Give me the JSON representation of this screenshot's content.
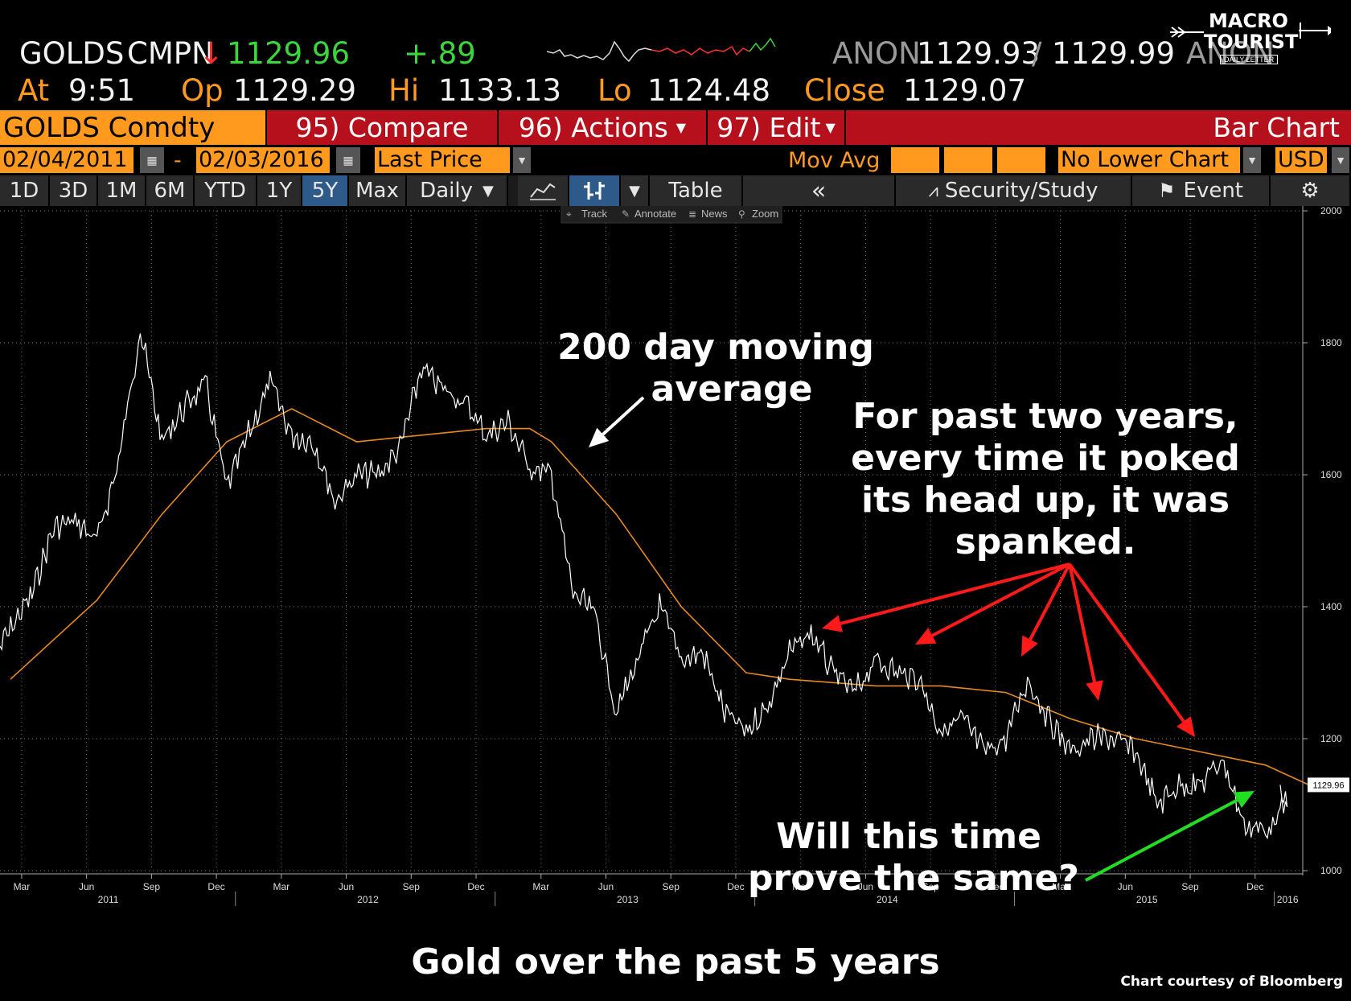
{
  "logo": {
    "line1": "MACRO",
    "line2": "TOURIST",
    "tag": "DAILY LETTER"
  },
  "quote": {
    "ticker": "GOLDS",
    "source": "CMPN",
    "arrow": "↓",
    "last": "1129.96",
    "change": "+.89",
    "bidask_source": "ANON",
    "bid": "1129.93",
    "slash": "/",
    "ask": "1129.99",
    "ask_source": "ANON",
    "at_label": "At",
    "at_time": "9:51",
    "op_label": "Op",
    "op": "1129.29",
    "hi_label": "Hi",
    "hi": "1133.13",
    "lo_label": "Lo",
    "lo": "1124.48",
    "close_label": "Close",
    "close": "1129.07"
  },
  "toolbar": {
    "security": "GOLDS Comdty",
    "compare": "95) Compare",
    "actions": "96) Actions",
    "edit": "97) Edit",
    "bar_chart": "Bar Chart",
    "start_date": "02/04/2011",
    "dash": "-",
    "end_date": "02/03/2016",
    "field": "Last Price",
    "mov_avg": "Mov Avg",
    "lower_chart": "No Lower Chart",
    "currency": "USD",
    "periods": [
      "1D",
      "3D",
      "1M",
      "6M",
      "YTD",
      "1Y",
      "5Y",
      "Max"
    ],
    "selected_period": "5Y",
    "frequency": "Daily",
    "table": "Table",
    "collapse": "«",
    "security_study": "Security/Study",
    "event": "Event",
    "tools": [
      "Track",
      "Annotate",
      "News",
      "Zoom"
    ]
  },
  "annotations": {
    "ma_line1": "200 day moving",
    "ma_line2": "average",
    "spanked_lines": [
      "For past two years,",
      "every time it poked",
      "its head up, it was",
      "spanked."
    ],
    "question_line1": "Will this time",
    "question_line2": "prove the same?",
    "caption": "Gold over the past 5 years",
    "credit": "Chart courtesy of Bloomberg"
  },
  "colors": {
    "price": "#ffffff",
    "moving_average": "#e88a1f",
    "arrows_red": "#ff1a1a",
    "arrow_green": "#22dd22",
    "bloomberg_orange": "#ff9a1f",
    "bloomberg_red": "#b5101b"
  },
  "chart_data": {
    "type": "line",
    "ylim": [
      1000,
      2000
    ],
    "yticks": [
      1000,
      1200,
      1400,
      1600,
      1800,
      2000
    ],
    "x_month_labels": [
      "Mar",
      "Jun",
      "Sep",
      "Dec",
      "Mar",
      "Jun",
      "Sep",
      "Dec",
      "Mar",
      "Jun",
      "Sep",
      "Dec",
      "Mar",
      "Jun",
      "Sep",
      "Dec",
      "Mar",
      "Jun",
      "Sep",
      "Dec"
    ],
    "x_year_labels": [
      "2011",
      "2012",
      "2013",
      "2014",
      "2015",
      "2016"
    ],
    "last_price_label": "1129.96",
    "series": [
      {
        "name": "Last Price",
        "x": [
          "2011-02",
          "2011-03",
          "2011-04",
          "2011-05",
          "2011-06",
          "2011-07",
          "2011-08",
          "2011-09",
          "2011-10",
          "2011-11",
          "2011-12",
          "2012-01",
          "2012-02",
          "2012-03",
          "2012-04",
          "2012-05",
          "2012-06",
          "2012-07",
          "2012-08",
          "2012-09",
          "2012-10",
          "2012-11",
          "2012-12",
          "2013-01",
          "2013-02",
          "2013-03",
          "2013-04",
          "2013-05",
          "2013-06",
          "2013-07",
          "2013-08",
          "2013-09",
          "2013-10",
          "2013-11",
          "2013-12",
          "2014-01",
          "2014-02",
          "2014-03",
          "2014-04",
          "2014-05",
          "2014-06",
          "2014-07",
          "2014-08",
          "2014-09",
          "2014-10",
          "2014-11",
          "2014-12",
          "2015-01",
          "2015-02",
          "2015-03",
          "2015-04",
          "2015-05",
          "2015-06",
          "2015-07",
          "2015-08",
          "2015-09",
          "2015-10",
          "2015-11",
          "2015-12",
          "2016-01",
          "2016-02"
        ],
        "y": [
          1340,
          1420,
          1520,
          1530,
          1500,
          1620,
          1820,
          1650,
          1700,
          1740,
          1580,
          1660,
          1740,
          1660,
          1650,
          1560,
          1600,
          1600,
          1640,
          1760,
          1730,
          1710,
          1660,
          1680,
          1610,
          1600,
          1420,
          1390,
          1240,
          1320,
          1400,
          1320,
          1330,
          1240,
          1210,
          1250,
          1330,
          1360,
          1300,
          1270,
          1320,
          1300,
          1290,
          1210,
          1230,
          1180,
          1200,
          1290,
          1230,
          1180,
          1200,
          1200,
          1180,
          1100,
          1130,
          1130,
          1170,
          1070,
          1060,
          1100,
          1130
        ]
      },
      {
        "name": "Mov Avg",
        "x": [
          "2011-02",
          "2011-06",
          "2011-09",
          "2011-12",
          "2012-03",
          "2012-06",
          "2012-09",
          "2012-12",
          "2013-02",
          "2013-03",
          "2013-06",
          "2013-09",
          "2013-12",
          "2014-02",
          "2014-06",
          "2014-09",
          "2014-12",
          "2015-03",
          "2015-06",
          "2015-09",
          "2015-12",
          "2016-02"
        ],
        "y": [
          1290,
          1410,
          1540,
          1650,
          1700,
          1650,
          1660,
          1670,
          1670,
          1650,
          1540,
          1400,
          1300,
          1290,
          1280,
          1280,
          1270,
          1230,
          1200,
          1180,
          1160,
          1130
        ]
      }
    ]
  }
}
